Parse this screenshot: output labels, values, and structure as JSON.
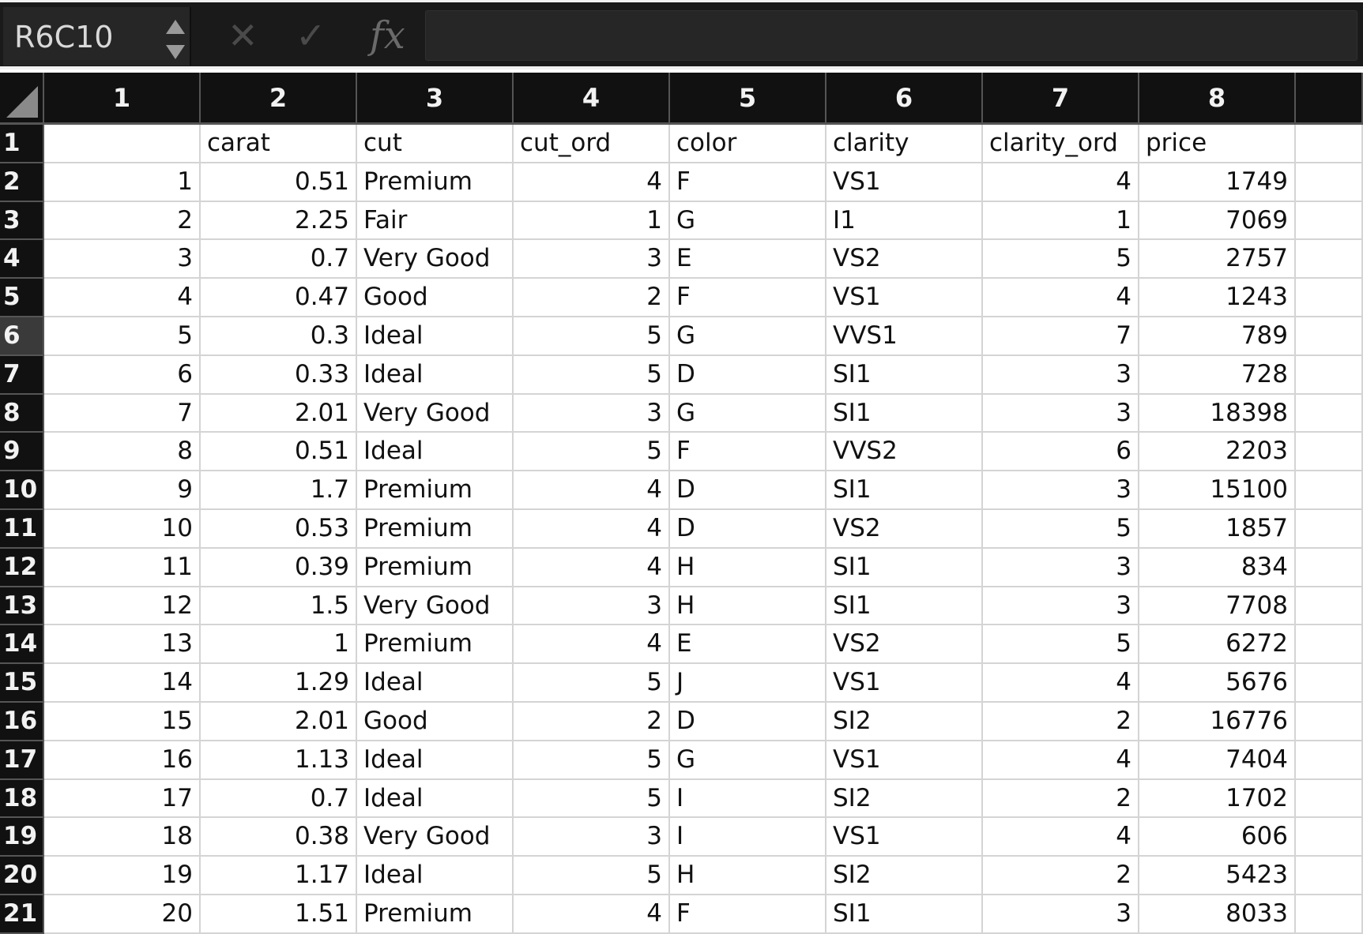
{
  "formula_bar": {
    "name_box": "R6C10",
    "cancel_icon": "close-icon",
    "enter_icon": "check-icon",
    "fx_label": "fx",
    "formula_value": ""
  },
  "selected_row": 6,
  "column_headers": [
    "1",
    "2",
    "3",
    "4",
    "5",
    "6",
    "7",
    "8"
  ],
  "rows": [
    {
      "row": "1",
      "cells": [
        "",
        "carat",
        "cut",
        "cut_ord",
        "color",
        "clarity",
        "clarity_ord",
        "price"
      ]
    },
    {
      "row": "2",
      "cells": [
        "1",
        "0.51",
        "Premium",
        "4",
        "F",
        "VS1",
        "4",
        "1749"
      ]
    },
    {
      "row": "3",
      "cells": [
        "2",
        "2.25",
        "Fair",
        "1",
        "G",
        "I1",
        "1",
        "7069"
      ]
    },
    {
      "row": "4",
      "cells": [
        "3",
        "0.7",
        "Very Good",
        "3",
        "E",
        "VS2",
        "5",
        "2757"
      ]
    },
    {
      "row": "5",
      "cells": [
        "4",
        "0.47",
        "Good",
        "2",
        "F",
        "VS1",
        "4",
        "1243"
      ]
    },
    {
      "row": "6",
      "cells": [
        "5",
        "0.3",
        "Ideal",
        "5",
        "G",
        "VVS1",
        "7",
        "789"
      ]
    },
    {
      "row": "7",
      "cells": [
        "6",
        "0.33",
        "Ideal",
        "5",
        "D",
        "SI1",
        "3",
        "728"
      ]
    },
    {
      "row": "8",
      "cells": [
        "7",
        "2.01",
        "Very Good",
        "3",
        "G",
        "SI1",
        "3",
        "18398"
      ]
    },
    {
      "row": "9",
      "cells": [
        "8",
        "0.51",
        "Ideal",
        "5",
        "F",
        "VVS2",
        "6",
        "2203"
      ]
    },
    {
      "row": "10",
      "cells": [
        "9",
        "1.7",
        "Premium",
        "4",
        "D",
        "SI1",
        "3",
        "15100"
      ]
    },
    {
      "row": "11",
      "cells": [
        "10",
        "0.53",
        "Premium",
        "4",
        "D",
        "VS2",
        "5",
        "1857"
      ]
    },
    {
      "row": "12",
      "cells": [
        "11",
        "0.39",
        "Premium",
        "4",
        "H",
        "SI1",
        "3",
        "834"
      ]
    },
    {
      "row": "13",
      "cells": [
        "12",
        "1.5",
        "Very Good",
        "3",
        "H",
        "SI1",
        "3",
        "7708"
      ]
    },
    {
      "row": "14",
      "cells": [
        "13",
        "1",
        "Premium",
        "4",
        "E",
        "VS2",
        "5",
        "6272"
      ]
    },
    {
      "row": "15",
      "cells": [
        "14",
        "1.29",
        "Ideal",
        "5",
        "J",
        "VS1",
        "4",
        "5676"
      ]
    },
    {
      "row": "16",
      "cells": [
        "15",
        "2.01",
        "Good",
        "2",
        "D",
        "SI2",
        "2",
        "16776"
      ]
    },
    {
      "row": "17",
      "cells": [
        "16",
        "1.13",
        "Ideal",
        "5",
        "G",
        "VS1",
        "4",
        "7404"
      ]
    },
    {
      "row": "18",
      "cells": [
        "17",
        "0.7",
        "Ideal",
        "5",
        "I",
        "SI2",
        "2",
        "1702"
      ]
    },
    {
      "row": "19",
      "cells": [
        "18",
        "0.38",
        "Very Good",
        "3",
        "I",
        "VS1",
        "4",
        "606"
      ]
    },
    {
      "row": "20",
      "cells": [
        "19",
        "1.17",
        "Ideal",
        "5",
        "H",
        "SI2",
        "2",
        "5423"
      ]
    },
    {
      "row": "21",
      "cells": [
        "20",
        "1.51",
        "Premium",
        "4",
        "F",
        "SI1",
        "3",
        "8033"
      ]
    }
  ]
}
